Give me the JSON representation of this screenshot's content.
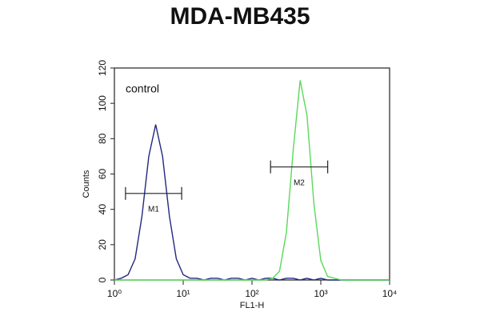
{
  "chart_data": {
    "type": "histogram_line",
    "title": "MDA-MB435",
    "xlabel": "FL1-H",
    "ylabel": "Counts",
    "annotation": "control",
    "log_x": true,
    "xlim": [
      1,
      10000
    ],
    "xticks": [
      {
        "value": 1,
        "label": "10⁰"
      },
      {
        "value": 10,
        "label": "10¹"
      },
      {
        "value": 100,
        "label": "10²"
      },
      {
        "value": 1000,
        "label": "10³"
      },
      {
        "value": 10000,
        "label": "10⁴"
      }
    ],
    "ylim": [
      0,
      120
    ],
    "yticks": [
      0,
      20,
      40,
      60,
      80,
      100,
      120
    ],
    "x": [
      1,
      1.26,
      1.58,
      2,
      2.51,
      3.16,
      3.98,
      5.01,
      6.31,
      7.94,
      10,
      12.6,
      15.8,
      20,
      25.1,
      31.6,
      39.8,
      50.1,
      63.1,
      79.4,
      100,
      126,
      158,
      200,
      251,
      316,
      398,
      501,
      631,
      794,
      1000,
      1260,
      1580,
      2000,
      2510,
      3160,
      3980,
      5010,
      6310,
      7940,
      10000
    ],
    "series": [
      {
        "color": "#1f2a80",
        "values": [
          0,
          1,
          3,
          12,
          36,
          70,
          88,
          70,
          36,
          12,
          3,
          1,
          1,
          0,
          1,
          1,
          0,
          1,
          1,
          0,
          1,
          0,
          1,
          1,
          0,
          1,
          1,
          0,
          1,
          0,
          1,
          0,
          0,
          0,
          0,
          0,
          0,
          0,
          0,
          0,
          0
        ]
      },
      {
        "color": "#5ad85a",
        "values": [
          0,
          0,
          0,
          0,
          0,
          0,
          0,
          0,
          0,
          0,
          0,
          0,
          0,
          0,
          0,
          0,
          0,
          0,
          0,
          0,
          0,
          0,
          0,
          1,
          5,
          27,
          74,
          113,
          93,
          43,
          11,
          2,
          1,
          0,
          0,
          0,
          0,
          0,
          0,
          0,
          0
        ]
      }
    ],
    "gates": [
      {
        "label": "M1",
        "x": [
          1.45,
          9.5
        ],
        "y": 49
      },
      {
        "label": "M2",
        "x": [
          186,
          1260
        ],
        "y": 64
      }
    ]
  }
}
